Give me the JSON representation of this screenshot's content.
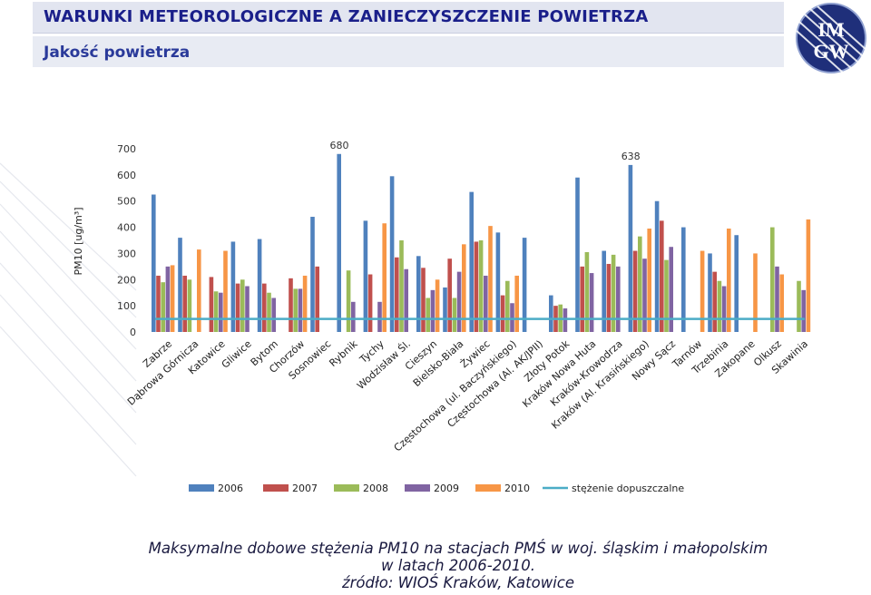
{
  "header": {
    "title": "WARUNKI METEOROLOGICZNE A ZANIECZYSZCZENIE POWIETRZA",
    "subtitle": "Jakość powietrza"
  },
  "logo": {
    "text": "IMGW"
  },
  "caption": {
    "line1": "Maksymalne dobowe stężenia PM10 na stacjach PMŚ w woj. śląskim i małopolskim",
    "line2": "w latach 2006-2010.",
    "line3": "źródło: WIOŚ Kraków, Katowice"
  },
  "colors": {
    "2006": "#4f81bd",
    "2007": "#c0504d",
    "2008": "#9bbb59",
    "2009": "#8064a2",
    "2010": "#f79646",
    "limit": "#4bacc6"
  },
  "chart_data": {
    "type": "bar",
    "ylabel": "PM10 [ug/m³]",
    "ylim": [
      0,
      700
    ],
    "yticks": [
      0,
      100,
      200,
      300,
      400,
      500,
      600,
      700
    ],
    "grid": false,
    "legend_position": "bottom",
    "categories": [
      "Zabrze",
      "Dąbrowa Górnicza",
      "Katowice",
      "Gliwice",
      "Bytom",
      "Chorzów",
      "Sosnowiec",
      "Rybnik",
      "Tychy",
      "Wodzisław Śl.",
      "Cieszyn",
      "Bielsko-Biała",
      "Żywiec",
      "Częstochowa (ul. Baczyńskiego)",
      "Częstochowa (Al. AK/JPII)",
      "Złoty Potok",
      "Kraków Nowa Huta",
      "Kraków-Krowodrza",
      "Kraków (Al. Krasińskiego)",
      "Nowy Sącz",
      "Tarnów",
      "Trzebinia",
      "Zakopane",
      "Olkusz",
      "Skawinia"
    ],
    "series": [
      {
        "name": "2006",
        "values": [
          525,
          360,
          null,
          345,
          355,
          null,
          440,
          680,
          425,
          595,
          290,
          170,
          535,
          380,
          360,
          140,
          590,
          310,
          638,
          500,
          400,
          300,
          370,
          null,
          null
        ]
      },
      {
        "name": "2007",
        "values": [
          215,
          215,
          210,
          185,
          185,
          205,
          250,
          null,
          220,
          285,
          245,
          280,
          345,
          140,
          null,
          100,
          250,
          260,
          310,
          425,
          null,
          230,
          null,
          null,
          null
        ]
      },
      {
        "name": "2008",
        "values": [
          190,
          200,
          155,
          200,
          150,
          165,
          null,
          235,
          null,
          350,
          130,
          130,
          350,
          195,
          null,
          105,
          305,
          295,
          365,
          275,
          null,
          195,
          null,
          400,
          195
        ]
      },
      {
        "name": "2009",
        "values": [
          250,
          null,
          150,
          175,
          130,
          165,
          null,
          115,
          115,
          240,
          160,
          230,
          215,
          110,
          null,
          90,
          225,
          250,
          280,
          325,
          null,
          175,
          null,
          250,
          160
        ]
      },
      {
        "name": "2010",
        "values": [
          255,
          315,
          310,
          null,
          null,
          215,
          null,
          null,
          415,
          null,
          200,
          335,
          405,
          215,
          null,
          null,
          null,
          null,
          395,
          null,
          310,
          395,
          300,
          220,
          430
        ]
      }
    ],
    "limit": {
      "name": "stężenie dopuszczalne",
      "value": 50
    },
    "annotations": [
      {
        "text": "680",
        "category": "Rybnik",
        "value": 680
      },
      {
        "text": "638",
        "category": "Kraków (Al. Krasińskiego)",
        "value": 638
      }
    ]
  }
}
